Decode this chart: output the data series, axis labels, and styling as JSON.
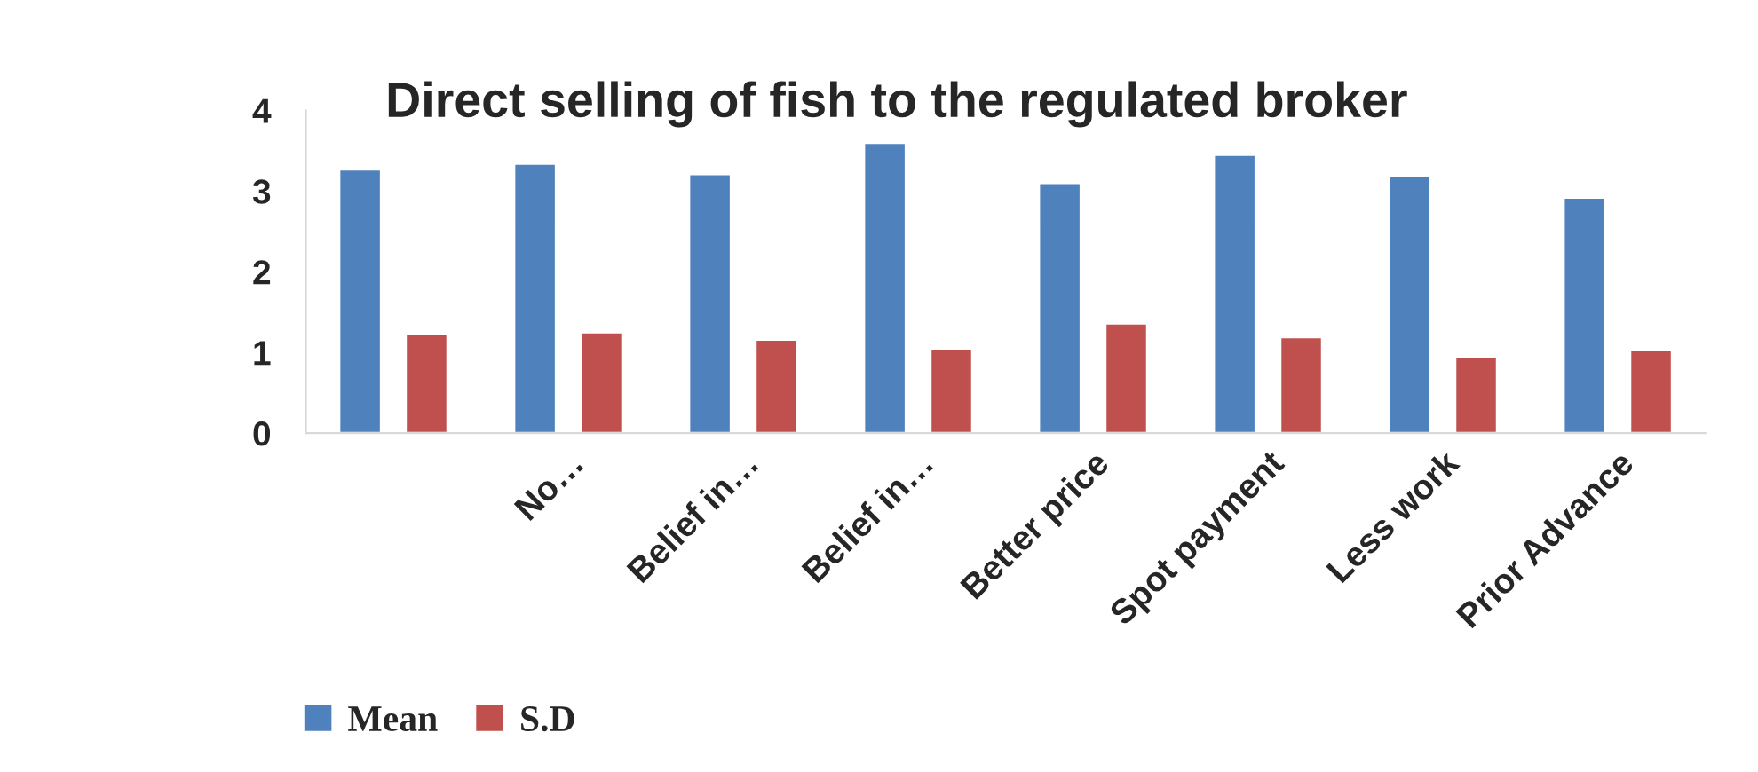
{
  "chart_data": {
    "type": "bar",
    "title": "Direct selling of fish to the regulated broker",
    "categories": [
      null,
      "No…",
      "Belief in…",
      "Belief in…",
      "Better price",
      "Spot payment",
      "Less work",
      "Prior Advance"
    ],
    "series": [
      {
        "name": "Mean",
        "color": "#4f81bd",
        "values": [
          3.27,
          3.34,
          3.21,
          3.6,
          3.1,
          3.45,
          3.19,
          2.92
        ]
      },
      {
        "name": "S.D",
        "color": "#c0504d",
        "values": [
          1.23,
          1.25,
          1.16,
          1.05,
          1.36,
          1.19,
          0.95,
          1.03
        ]
      }
    ],
    "ylim": [
      0,
      4
    ],
    "yticks": [
      0,
      1,
      2,
      3,
      4
    ],
    "grid": false,
    "legend": "bottom"
  }
}
